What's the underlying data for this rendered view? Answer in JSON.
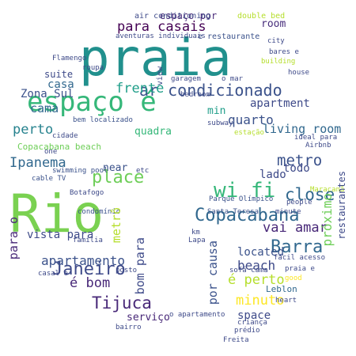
{
  "palette": {
    "background": "#ffffff",
    "purple": "#440154",
    "indigo": "#3b528b",
    "teal": "#21908d",
    "green": "#5dc863",
    "yellow": "#fde725"
  },
  "words": [
    {
      "text": "praia",
      "color": "#21908d"
    },
    {
      "text": "Rio",
      "color": "#7ad151"
    },
    {
      "text": "espaço é",
      "color": "#35b779"
    },
    {
      "text": "ar condicionado",
      "color": "#3b528b"
    },
    {
      "text": "Copacabana",
      "color": "#31688e"
    },
    {
      "text": "Barra",
      "color": "#31688e"
    },
    {
      "text": "Janeiro",
      "color": "#3e4a89"
    },
    {
      "text": "Tijuca",
      "color": "#482878"
    },
    {
      "text": "wi fi",
      "color": "#35b779"
    },
    {
      "text": "close",
      "color": "#31688e"
    },
    {
      "text": "metro",
      "color": "#3b528b"
    },
    {
      "text": "Ipanema",
      "color": "#31688e"
    },
    {
      "text": "vai amar",
      "color": "#482878"
    },
    {
      "text": "beach",
      "color": "#3e4a89"
    },
    {
      "text": "place",
      "color": "#6ece58"
    },
    {
      "text": "apartamento",
      "color": "#3b528b"
    },
    {
      "text": "é bom",
      "color": "#482878"
    },
    {
      "text": "para casais",
      "color": "#440154"
    },
    {
      "text": "apartment",
      "color": "#3e4a89"
    },
    {
      "text": "quarto",
      "color": "#3b528b"
    },
    {
      "text": "minuto",
      "color": "#fde725"
    },
    {
      "text": "é perto",
      "color": "#b5de2b"
    },
    {
      "text": "perto",
      "color": "#26828e"
    },
    {
      "text": "frente",
      "color": "#1f9e89"
    },
    {
      "text": "vista para",
      "color": "#3e4a89"
    },
    {
      "text": "living room",
      "color": "#31688e"
    },
    {
      "text": "space",
      "color": "#3e4a89"
    },
    {
      "text": "espaço por",
      "color": "#482878"
    },
    {
      "text": "room",
      "color": "#472d7b"
    },
    {
      "text": "cama",
      "color": "#31688e"
    },
    {
      "text": "suite",
      "color": "#3e4a89"
    },
    {
      "text": "casa",
      "color": "#31688e"
    },
    {
      "text": "Zona Sul",
      "color": "#3b528b"
    },
    {
      "text": "Copacabana beach",
      "color": "#6ece58"
    },
    {
      "text": "near",
      "color": "#3b528b"
    },
    {
      "text": "min",
      "color": "#1f9e89"
    },
    {
      "text": "todo",
      "color": "#3e4a89"
    },
    {
      "text": "lado",
      "color": "#3e4a89"
    },
    {
      "text": "located",
      "color": "#3b528b"
    },
    {
      "text": "serviço",
      "color": "#482878"
    },
    {
      "text": "Leblon",
      "color": "#31688e"
    },
    {
      "text": "quadra",
      "color": "#35b779"
    },
    {
      "text": "air conditioning",
      "color": "#3e4a89"
    },
    {
      "text": "double bed",
      "color": "#b5de2b"
    },
    {
      "text": "e restaurante",
      "color": "#3b528b"
    },
    {
      "text": "Airbnb",
      "color": "#3e4a89"
    },
    {
      "text": "Parque Olímpico",
      "color": "#3b528b"
    },
    {
      "text": "Maracanã",
      "color": "#b5de2b"
    },
    {
      "text": "people",
      "color": "#3e4a89"
    },
    {
      "text": "minute",
      "color": "#3e4a89"
    },
    {
      "text": "Santa Teresa",
      "color": "#3b528b"
    },
    {
      "text": "Botafogo",
      "color": "#3e4a89"
    },
    {
      "text": "cable TV",
      "color": "#3b528b"
    },
    {
      "text": "swimming pool",
      "color": "#3b528b"
    },
    {
      "text": "condomínio",
      "color": "#3b528b"
    },
    {
      "text": "bem localizado",
      "color": "#3b528b"
    },
    {
      "text": "cidade",
      "color": "#3e4a89"
    },
    {
      "text": "one",
      "color": "#3e4a89"
    },
    {
      "text": "etc",
      "color": "#3e4a89"
    },
    {
      "text": "estação",
      "color": "#b5de2b"
    },
    {
      "text": "house",
      "color": "#3e4a89"
    },
    {
      "text": "building",
      "color": "#b5de2b"
    },
    {
      "text": "bares e",
      "color": "#3e4a89"
    },
    {
      "text": "city",
      "color": "#3e4a89"
    },
    {
      "text": "aventuras individuais",
      "color": "#3e4a89"
    },
    {
      "text": "Flamengo",
      "color": "#3e4a89"
    },
    {
      "text": "roupa",
      "color": "#3e4a89"
    },
    {
      "text": "bedroom",
      "color": "#3e4a89"
    },
    {
      "text": "subway",
      "color": "#3e4a89"
    },
    {
      "text": "ideal para",
      "color": "#3e4a89"
    },
    {
      "text": "km",
      "color": "#3e4a89"
    },
    {
      "text": "fácil acesso",
      "color": "#3e4a89"
    },
    {
      "text": "praia e",
      "color": "#3e4a89"
    },
    {
      "text": "criança",
      "color": "#3e4a89"
    },
    {
      "text": "prédio",
      "color": "#3e4a89"
    },
    {
      "text": "bairro",
      "color": "#3e4a89"
    },
    {
      "text": "posto",
      "color": "#3e4a89"
    },
    {
      "text": "heart",
      "color": "#3e4a89"
    },
    {
      "text": "good",
      "color": "#fde725"
    },
    {
      "text": "sofá cama",
      "color": "#3e4a89"
    },
    {
      "text": "família",
      "color": "#3e4a89"
    },
    {
      "text": "restaurantes",
      "color": "#3e4a89"
    },
    {
      "text": "próximo",
      "color": "#6ece58"
    },
    {
      "text": "por causa",
      "color": "#3b528b"
    },
    {
      "text": "bom para",
      "color": "#3e4a89"
    },
    {
      "text": "metrô",
      "color": "#b5de2b"
    },
    {
      "text": "para o",
      "color": "#482878"
    },
    {
      "text": "casal e",
      "color": "#3e4a89"
    },
    {
      "text": "view",
      "color": "#3e4a89"
    },
    {
      "text": "garagem",
      "color": "#3e4a89"
    },
    {
      "text": "o mar",
      "color": "#3e4a89"
    },
    {
      "text": "Lapa",
      "color": "#3e4a89"
    },
    {
      "text": "Freita",
      "color": "#3e4a89"
    },
    {
      "text": "o apartamento",
      "color": "#3e4a89"
    }
  ]
}
